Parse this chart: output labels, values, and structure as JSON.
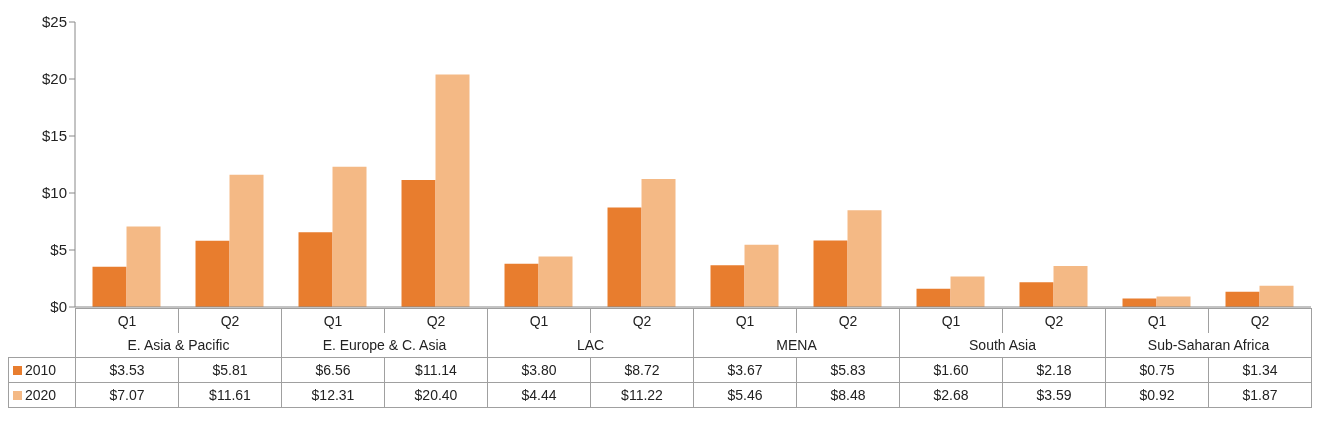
{
  "chart_data": {
    "type": "bar",
    "categories": [
      "Q1",
      "Q2",
      "Q1",
      "Q2",
      "Q1",
      "Q2",
      "Q1",
      "Q2",
      "Q1",
      "Q2",
      "Q1",
      "Q2"
    ],
    "annotations": [
      "E. Asia & Pacific",
      "E. Europe & C. Asia",
      "LAC",
      "MENA",
      "South Asia",
      "Sub-Saharan Africa"
    ],
    "series": [
      {
        "name": "2010",
        "color": "#e87d2e",
        "values": [
          3.53,
          5.81,
          6.56,
          11.14,
          3.8,
          8.72,
          3.67,
          5.83,
          1.6,
          2.18,
          0.75,
          1.34
        ],
        "value_labels": [
          "$3.53",
          "$5.81",
          "$6.56",
          "$11.14",
          "$3.80",
          "$8.72",
          "$3.67",
          "$5.83",
          "$1.60",
          "$2.18",
          "$0.75",
          "$1.34"
        ]
      },
      {
        "name": "2020",
        "color": "#f4b985",
        "values": [
          7.07,
          11.61,
          12.31,
          20.4,
          4.44,
          11.22,
          5.46,
          8.48,
          2.68,
          3.59,
          0.92,
          1.87
        ],
        "value_labels": [
          "$7.07",
          "$11.61",
          "$12.31",
          "$20.40",
          "$4.44",
          "$11.22",
          "$5.46",
          "$8.48",
          "$2.68",
          "$3.59",
          "$0.92",
          "$1.87"
        ]
      }
    ],
    "ylim": [
      0,
      25
    ],
    "yticks": [
      {
        "value": 0,
        "label": "$0"
      },
      {
        "value": 5,
        "label": "$5"
      },
      {
        "value": 10,
        "label": "$10"
      },
      {
        "value": 15,
        "label": "$15"
      },
      {
        "value": 20,
        "label": "$20"
      },
      {
        "value": 25,
        "label": "$25"
      }
    ],
    "legend": "bottom left"
  }
}
